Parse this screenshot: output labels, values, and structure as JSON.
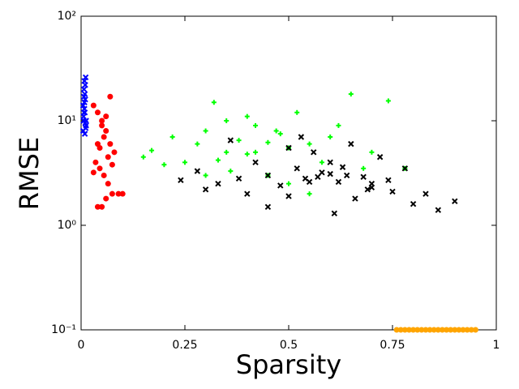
{
  "chart_data": {
    "type": "scatter",
    "x_label": "Sparsity",
    "y_label": "RMSE",
    "xlim": [
      0,
      1
    ],
    "xticks": [
      0,
      0.25,
      0.5,
      0.75,
      1
    ],
    "ylim": [
      0.1,
      100
    ],
    "log_y": true,
    "yticks": [
      {
        "value": 0.1,
        "label": "10⁻¹"
      },
      {
        "value": 1,
        "label": "10⁰"
      },
      {
        "value": 10,
        "label": "10¹"
      },
      {
        "value": 100,
        "label": "10²"
      }
    ],
    "grid": false,
    "series": [
      {
        "color": "#0000ff",
        "marker": "x",
        "x": [
          0.005,
          0.006,
          0.007,
          0.008,
          0.009,
          0.01,
          0.011,
          0.012,
          0.006,
          0.008,
          0.01,
          0.007,
          0.009,
          0.011,
          0.005,
          0.008,
          0.012,
          0.009,
          0.007,
          0.01
        ],
        "values": [
          8,
          10,
          12,
          15,
          18,
          22,
          26,
          9,
          11,
          13,
          16,
          20,
          7.5,
          8.5,
          14,
          24,
          10,
          12,
          17,
          9.5
        ]
      },
      {
        "color": "#ff0000",
        "marker": "circle",
        "x": [
          0.03,
          0.04,
          0.05,
          0.06,
          0.07,
          0.08,
          0.035,
          0.045,
          0.055,
          0.065,
          0.075,
          0.09,
          0.04,
          0.05,
          0.06,
          0.03,
          0.045,
          0.055,
          0.065,
          0.07,
          0.1,
          0.05,
          0.06,
          0.04,
          0.075
        ],
        "values": [
          14,
          12,
          10,
          8,
          6,
          5,
          4,
          3.5,
          3,
          2.5,
          2,
          2,
          1.5,
          1.5,
          1.8,
          3.2,
          5.5,
          7,
          4.5,
          17,
          2,
          9,
          11,
          6,
          3.8
        ]
      },
      {
        "color": "#00ff00",
        "marker": "plus",
        "x": [
          0.15,
          0.17,
          0.2,
          0.22,
          0.25,
          0.28,
          0.3,
          0.32,
          0.35,
          0.38,
          0.4,
          0.42,
          0.45,
          0.48,
          0.5,
          0.52,
          0.55,
          0.58,
          0.6,
          0.62,
          0.65,
          0.68,
          0.7,
          0.74,
          0.78,
          0.3,
          0.35,
          0.4,
          0.45,
          0.5,
          0.36,
          0.42,
          0.55,
          0.33,
          0.47
        ],
        "values": [
          4.5,
          5.2,
          3.8,
          7,
          4,
          6,
          8,
          15,
          5,
          6.5,
          4.8,
          9,
          3,
          7.5,
          5.5,
          12,
          6,
          4,
          7,
          9,
          18,
          3.5,
          5,
          15.5,
          3.5,
          3,
          10,
          11,
          6.2,
          2.5,
          3.3,
          5,
          2,
          4.2,
          8
        ]
      },
      {
        "color": "#000000",
        "marker": "x",
        "x": [
          0.24,
          0.28,
          0.3,
          0.33,
          0.36,
          0.4,
          0.42,
          0.45,
          0.48,
          0.5,
          0.52,
          0.54,
          0.56,
          0.58,
          0.6,
          0.62,
          0.64,
          0.66,
          0.68,
          0.7,
          0.72,
          0.75,
          0.78,
          0.8,
          0.83,
          0.86,
          0.9,
          0.5,
          0.55,
          0.6,
          0.65,
          0.7,
          0.45,
          0.57,
          0.63,
          0.69,
          0.38,
          0.53,
          0.61,
          0.74
        ],
        "values": [
          2.7,
          3.3,
          2.2,
          2.5,
          6.5,
          2,
          4,
          3,
          2.4,
          1.9,
          3.5,
          2.8,
          5,
          3.2,
          4,
          2.6,
          3,
          1.8,
          2.9,
          2.3,
          4.5,
          2.1,
          3.5,
          1.6,
          2,
          1.4,
          1.7,
          5.5,
          2.6,
          3.1,
          6,
          2.5,
          1.5,
          2.9,
          3.6,
          2.2,
          2.8,
          7,
          1.3,
          2.7
        ]
      },
      {
        "color": "#ffa500",
        "marker": "circle",
        "x": [
          0.76,
          0.77,
          0.78,
          0.79,
          0.8,
          0.81,
          0.82,
          0.83,
          0.84,
          0.85,
          0.86,
          0.87,
          0.88,
          0.89,
          0.9,
          0.91,
          0.92,
          0.93,
          0.94,
          0.95
        ],
        "values": [
          0.1,
          0.1,
          0.1,
          0.1,
          0.1,
          0.1,
          0.1,
          0.1,
          0.1,
          0.1,
          0.1,
          0.1,
          0.1,
          0.1,
          0.1,
          0.1,
          0.1,
          0.1,
          0.1,
          0.1
        ]
      }
    ]
  }
}
